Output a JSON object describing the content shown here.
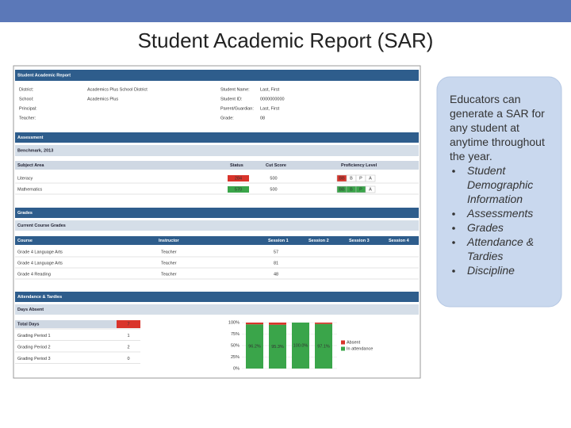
{
  "slide": {
    "title": "Student Academic Report (SAR)",
    "callout": {
      "intro": "Educators can generate a SAR for any student at anytime throughout the year.",
      "bullets": [
        "Student Demographic Information",
        "Assessments",
        "Grades",
        "Attendance & Tardies",
        "Discipline"
      ]
    }
  },
  "report": {
    "title": "Student Academic Report",
    "info_left": [
      [
        "District:",
        "Academics Plus School District"
      ],
      [
        "School:",
        "Academics Plus"
      ],
      [
        "Principal:",
        null
      ],
      [
        "Teacher:",
        null
      ]
    ],
    "info_right": [
      [
        "Student Name:",
        "Last, First"
      ],
      [
        "Student ID:",
        "0000000000"
      ],
      [
        "Parent/Guardian:",
        "Last, First"
      ],
      [
        "Grade:",
        "08"
      ]
    ],
    "assessment": {
      "heading": "Assessment",
      "subheading": "Benchmark, 2013",
      "columns": [
        "Subject Area",
        "Status",
        "Cut Score",
        "Proficiency Level"
      ],
      "levels": [
        "BB",
        "B",
        "P",
        "A"
      ],
      "rows": [
        {
          "subject": "Literacy",
          "status": "284",
          "cut": "500",
          "highlight": [
            0
          ],
          "color": "#d9342b"
        },
        {
          "subject": "Mathematics",
          "status": "570",
          "cut": "500",
          "highlight": [
            0,
            1,
            2
          ],
          "color": "#3aa54a"
        }
      ]
    },
    "grades": {
      "heading": "Grades",
      "subheading": "Current Course Grades",
      "columns": [
        "Course",
        "Instructor",
        "Session 1",
        "Session 2",
        "Session 3",
        "Session 4"
      ],
      "rows": [
        [
          "Grade 4 Language Arts",
          "Teacher",
          "57"
        ],
        [
          "Grade 4 Language Arts",
          "Teacher",
          "81"
        ],
        [
          "Grade 4 Reading",
          "Teacher",
          "48"
        ]
      ]
    },
    "attendance": {
      "heading": "Attendance & Tardies",
      "subheading": "Days Absent",
      "rows": [
        [
          "Total Days",
          "7"
        ],
        [
          "Grading Period 1",
          "1"
        ],
        [
          "Grading Period 2",
          "2"
        ],
        [
          "Grading Period 3",
          "0"
        ]
      ],
      "chart": {
        "type": "bar",
        "ylim": [
          0,
          100
        ],
        "yticks": [
          {
            "value": 0,
            "label": "0%"
          },
          {
            "value": 25,
            "label": "25%"
          },
          {
            "value": 50,
            "label": "50%"
          },
          {
            "value": 75,
            "label": "75%"
          },
          {
            "value": 100,
            "label": "100%"
          }
        ],
        "series": [
          {
            "name": "In attendance",
            "color": "#3aa54a",
            "values": [
              96.2,
              95.3,
              100,
              97.1
            ],
            "value_labels": [
              "96.2%",
              "95.3%",
              "100.0%",
              "97.1%"
            ]
          },
          {
            "name": "Absent",
            "color": "#d9342b",
            "values": [
              3.8,
              4.7,
              0,
              2.9
            ]
          }
        ]
      }
    }
  }
}
